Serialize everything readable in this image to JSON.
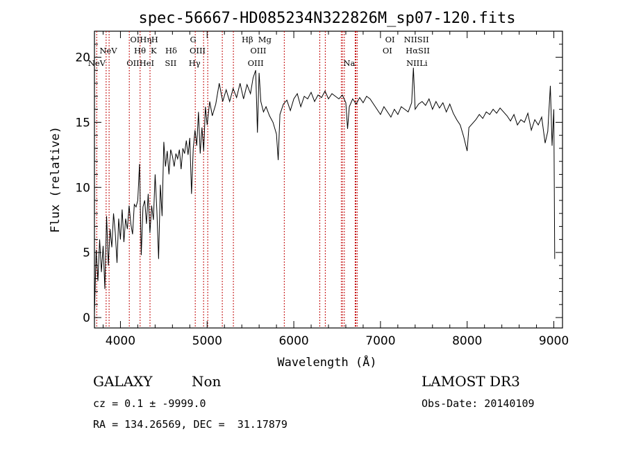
{
  "chart_data": {
    "type": "line",
    "title": "spec-56667-HD085234N322826M_sp07-120.fits",
    "xlabel": "Wavelength (Å)",
    "ylabel": "Flux (relative)",
    "xlim": [
      3700,
      9100
    ],
    "ylim": [
      -0.8,
      22
    ],
    "x_ticks": [
      4000,
      5000,
      6000,
      7000,
      8000,
      9000
    ],
    "y_ticks": [
      0,
      5,
      10,
      15,
      20
    ],
    "grid": false,
    "series": [
      {
        "x": [
          3700,
          3720,
          3740,
          3760,
          3780,
          3800,
          3820,
          3840,
          3860,
          3880,
          3900,
          3920,
          3940,
          3960,
          3980,
          4000,
          4020,
          4040,
          4060,
          4080,
          4100,
          4120,
          4140,
          4160,
          4180,
          4200,
          4220,
          4240,
          4260,
          4280,
          4300,
          4320,
          4340,
          4360,
          4380,
          4400,
          4420,
          4440,
          4460,
          4480,
          4500,
          4520,
          4540,
          4560,
          4580,
          4600,
          4620,
          4640,
          4660,
          4680,
          4700,
          4720,
          4740,
          4760,
          4780,
          4800,
          4820,
          4840,
          4860,
          4880,
          4900,
          4920,
          4940,
          4960,
          4980,
          5000,
          5030,
          5060,
          5100,
          5140,
          5180,
          5220,
          5260,
          5300,
          5340,
          5380,
          5420,
          5460,
          5500,
          5530,
          5560,
          5580,
          5600,
          5620,
          5650,
          5680,
          5720,
          5760,
          5800,
          5820,
          5840,
          5880,
          5920,
          5960,
          6000,
          6040,
          6080,
          6120,
          6160,
          6200,
          6240,
          6280,
          6320,
          6360,
          6400,
          6440,
          6480,
          6520,
          6560,
          6600,
          6620,
          6640,
          6680,
          6720,
          6760,
          6800,
          6840,
          6880,
          6920,
          6960,
          7000,
          7040,
          7080,
          7120,
          7160,
          7200,
          7240,
          7280,
          7320,
          7360,
          7380,
          7400,
          7440,
          7480,
          7520,
          7560,
          7600,
          7640,
          7680,
          7720,
          7760,
          7800,
          7840,
          7880,
          7920,
          7960,
          8000,
          8020,
          8060,
          8100,
          8140,
          8180,
          8220,
          8260,
          8300,
          8340,
          8380,
          8420,
          8460,
          8500,
          8540,
          8580,
          8620,
          8660,
          8700,
          8740,
          8780,
          8820,
          8860,
          8900,
          8930,
          8960,
          8980,
          9000,
          9010
        ],
        "y": [
          0.3,
          5.2,
          2.8,
          6.0,
          3.5,
          5.5,
          2.2,
          7.8,
          4.0,
          6.8,
          5.4,
          8.0,
          6.5,
          4.2,
          7.6,
          6.0,
          8.3,
          5.8,
          7.6,
          6.8,
          8.6,
          7.2,
          6.4,
          8.7,
          8.5,
          9.0,
          11.8,
          4.8,
          8.5,
          9.0,
          7.2,
          9.5,
          6.5,
          8.6,
          7.5,
          11.0,
          8.2,
          4.5,
          10.2,
          7.8,
          13.5,
          11.6,
          12.8,
          11.0,
          12.9,
          12.4,
          11.6,
          12.6,
          12.2,
          12.9,
          11.4,
          13.0,
          12.6,
          13.6,
          12.5,
          13.8,
          9.5,
          13.0,
          14.4,
          13.2,
          15.8,
          12.6,
          14.6,
          12.8,
          16.2,
          14.8,
          16.6,
          15.5,
          16.4,
          18.0,
          16.6,
          17.5,
          16.6,
          17.6,
          16.9,
          18.0,
          16.8,
          17.9,
          17.2,
          18.4,
          19.0,
          14.2,
          18.8,
          16.6,
          15.8,
          16.2,
          15.5,
          15.0,
          14.1,
          12.1,
          15.6,
          16.4,
          16.7,
          15.9,
          16.8,
          17.2,
          16.2,
          17.0,
          16.8,
          17.3,
          16.6,
          17.1,
          16.9,
          17.4,
          16.8,
          17.2,
          17.0,
          16.8,
          17.1,
          16.5,
          14.5,
          16.2,
          16.8,
          16.4,
          16.9,
          16.5,
          17.0,
          16.8,
          16.4,
          16.0,
          15.6,
          16.2,
          15.8,
          15.4,
          16.0,
          15.6,
          16.2,
          16.0,
          15.8,
          16.5,
          19.2,
          16.0,
          16.4,
          16.6,
          16.3,
          16.8,
          16.0,
          16.6,
          16.1,
          16.5,
          15.8,
          16.4,
          15.7,
          15.2,
          14.8,
          13.9,
          12.8,
          14.6,
          14.9,
          15.2,
          15.6,
          15.3,
          15.8,
          15.6,
          16.0,
          15.7,
          16.1,
          15.8,
          15.5,
          15.1,
          15.6,
          14.8,
          15.2,
          15.0,
          15.7,
          14.4,
          15.2,
          14.8,
          15.4,
          13.4,
          14.3,
          17.8,
          13.2,
          16.0,
          4.5
        ]
      }
    ],
    "line_markers": [
      {
        "x": 3726,
        "top": "",
        "bottom": ""
      },
      {
        "x": 3835,
        "top": "",
        "bottom": ""
      },
      {
        "x": 3869,
        "top": "",
        "bottom": ""
      },
      {
        "x": 4102,
        "top": "",
        "bottom": ""
      },
      {
        "x": 4227,
        "top": "",
        "bottom": ""
      },
      {
        "x": 4341,
        "top": "",
        "bottom": ""
      },
      {
        "x": 4863,
        "top": "",
        "bottom": ""
      },
      {
        "x": 4959,
        "top": "",
        "bottom": ""
      },
      {
        "x": 5007,
        "top": "",
        "bottom": ""
      },
      {
        "x": 5175,
        "top": "",
        "bottom": ""
      },
      {
        "x": 5303,
        "top": "",
        "bottom": ""
      },
      {
        "x": 5890,
        "top": "",
        "bottom": ""
      },
      {
        "x": 6300,
        "top": "",
        "bottom": ""
      },
      {
        "x": 6363,
        "top": "",
        "bottom": ""
      },
      {
        "x": 6548,
        "top": "",
        "bottom": ""
      },
      {
        "x": 6563,
        "top": "",
        "bottom": ""
      },
      {
        "x": 6583,
        "top": "",
        "bottom": ""
      },
      {
        "x": 6708,
        "top": "",
        "bottom": ""
      },
      {
        "x": 6716,
        "top": "",
        "bottom": ""
      },
      {
        "x": 6731,
        "top": "",
        "bottom": ""
      }
    ],
    "labels_top": [
      {
        "x": 3860,
        "row": 1,
        "text": "NeV"
      },
      {
        "x": 3727,
        "row": 2,
        "text": "NeV"
      },
      {
        "x": 4235,
        "row": 0,
        "text": "OIHη"
      },
      {
        "x": 4395,
        "row": 0,
        "text": "H"
      },
      {
        "x": 4225,
        "row": 1,
        "text": "Hθ"
      },
      {
        "x": 4383,
        "row": 1,
        "text": "K"
      },
      {
        "x": 4585,
        "row": 1,
        "text": "Hδ"
      },
      {
        "x": 4230,
        "row": 2,
        "text": "OIIHeI"
      },
      {
        "x": 4580,
        "row": 2,
        "text": "SII"
      },
      {
        "x": 4838,
        "row": 0,
        "text": "G"
      },
      {
        "x": 4890,
        "row": 1,
        "text": "OIII"
      },
      {
        "x": 4855,
        "row": 2,
        "text": "Hγ"
      },
      {
        "x": 5465,
        "row": 0,
        "text": "Hβ"
      },
      {
        "x": 5665,
        "row": 0,
        "text": "Mg"
      },
      {
        "x": 5590,
        "row": 1,
        "text": "OIII"
      },
      {
        "x": 5560,
        "row": 2,
        "text": "OIII"
      },
      {
        "x": 6640,
        "row": 2,
        "text": "Na"
      },
      {
        "x": 7110,
        "row": 0,
        "text": "OI"
      },
      {
        "x": 7080,
        "row": 1,
        "text": "OI"
      },
      {
        "x": 7415,
        "row": 0,
        "text": "NIISII"
      },
      {
        "x": 7430,
        "row": 1,
        "text": "HαSII"
      },
      {
        "x": 7420,
        "row": 2,
        "text": "NIILi"
      }
    ]
  },
  "marker_x": [
    3726,
    3835,
    3869,
    4102,
    4227,
    4341,
    4863,
    4959,
    5007,
    5175,
    5303,
    5890,
    6300,
    6363,
    6548,
    6563,
    6583,
    6708,
    6716,
    6731
  ],
  "footer": {
    "object_class": "GALAXY",
    "subclass": "Non",
    "survey": "LAMOST DR3",
    "cz": "cz = 0.1 ± -9999.0",
    "obs_date": "Obs-Date: 20140109",
    "coords": "RA = 134.26569, DEC =  31.17879"
  },
  "colors": {
    "spectrum": "#000000",
    "markers": "#c00000",
    "axes": "#000000"
  }
}
